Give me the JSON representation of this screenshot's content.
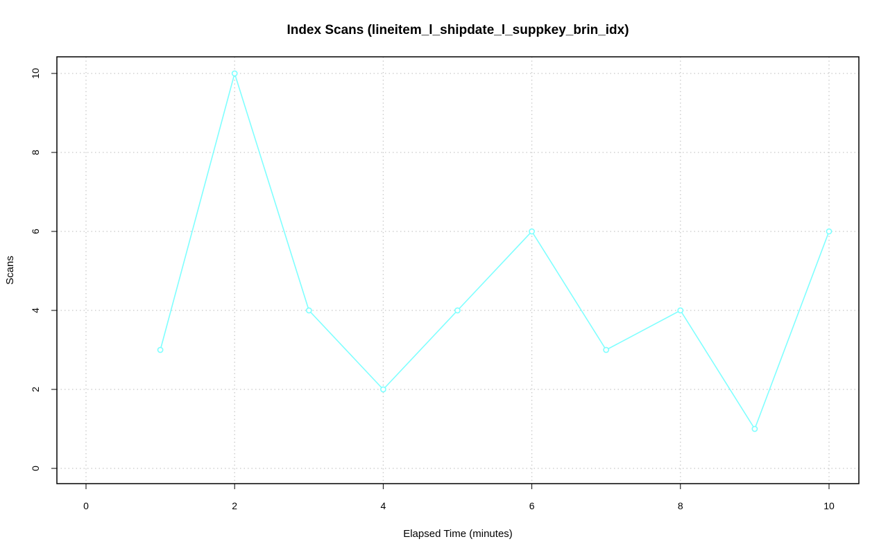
{
  "chart_data": {
    "type": "line",
    "title": "Index Scans (lineitem_l_shipdate_l_suppkey_brin_idx)",
    "xlabel": "Elapsed Time (minutes)",
    "ylabel": "Scans",
    "xlim": [
      0,
      10
    ],
    "ylim": [
      0,
      10
    ],
    "x_ticks": [
      0,
      2,
      4,
      6,
      8,
      10
    ],
    "y_ticks": [
      0,
      2,
      4,
      6,
      8,
      10
    ],
    "grid": true,
    "legend": "none",
    "series": [
      {
        "x": [
          1,
          2,
          3,
          4,
          5,
          6,
          7,
          8,
          9,
          10
        ],
        "values": [
          3,
          10,
          4,
          2,
          4,
          6,
          3,
          4,
          1,
          6
        ],
        "color": "#7fffff",
        "marker": "open-circle"
      }
    ]
  }
}
